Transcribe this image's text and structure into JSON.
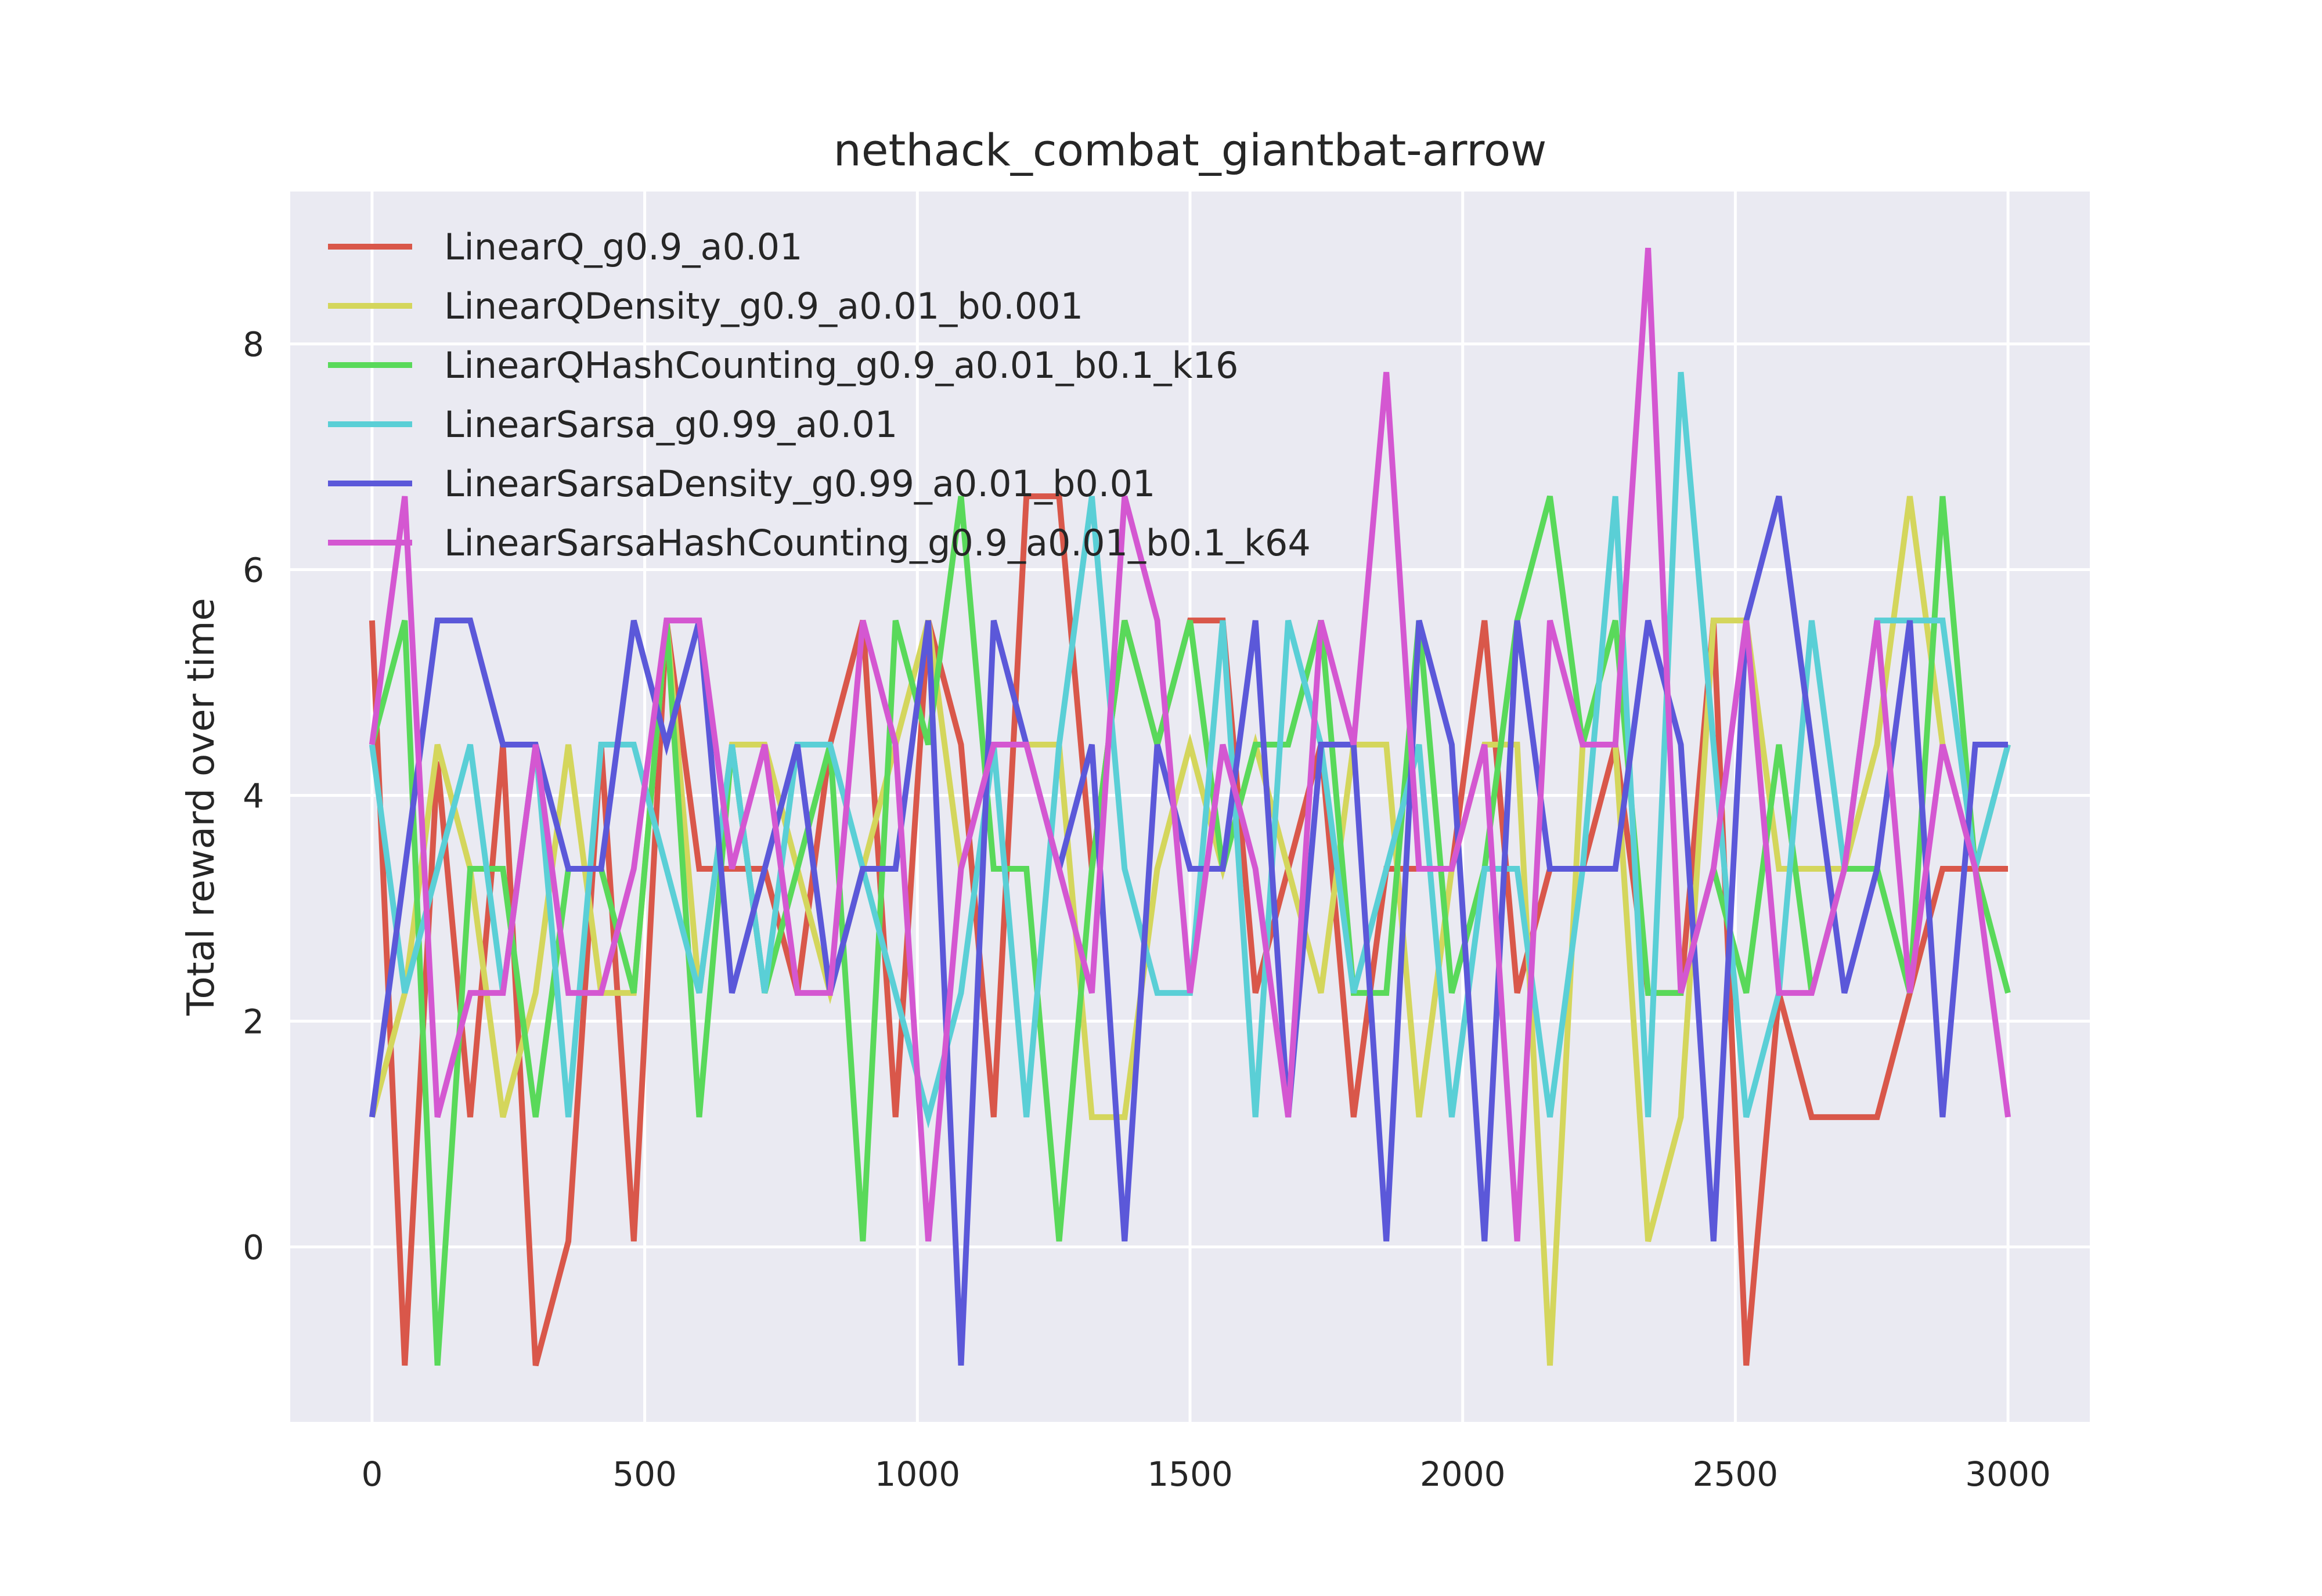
{
  "chart_data": {
    "type": "line",
    "title": "nethack_combat_giantbat-arrow",
    "xlabel": "",
    "ylabel": "Total reward over time",
    "xlim": [
      -150,
      3150
    ],
    "ylim": [
      -1.55,
      9.35
    ],
    "xticks": [
      0,
      500,
      1000,
      1500,
      2000,
      2500,
      3000
    ],
    "yticks": [
      0,
      2,
      4,
      6,
      8
    ],
    "grid": true,
    "legend_position": "top-left",
    "x": [
      0,
      60,
      120,
      180,
      240,
      300,
      360,
      420,
      480,
      540,
      600,
      660,
      720,
      780,
      840,
      900,
      960,
      1020,
      1080,
      1140,
      1200,
      1260,
      1320,
      1380,
      1440,
      1500,
      1560,
      1620,
      1680,
      1740,
      1800,
      1860,
      1920,
      1980,
      2040,
      2100,
      2160,
      2220,
      2280,
      2340,
      2400,
      2460,
      2520,
      2580,
      2640,
      2700,
      2760,
      2820,
      2880,
      2940,
      3000
    ],
    "series": [
      {
        "name": "LinearQ_g0.9_a0.01",
        "color": "#d9574a",
        "values": [
          5.55,
          -1.05,
          4.3,
          1.15,
          4.45,
          -1.05,
          0.05,
          4.45,
          0.05,
          5.55,
          3.35,
          3.35,
          3.35,
          2.25,
          4.45,
          5.55,
          1.15,
          5.55,
          4.45,
          1.15,
          6.65,
          6.65,
          3.35,
          5.55,
          4.45,
          5.55,
          5.55,
          2.25,
          3.35,
          4.45,
          1.15,
          3.35,
          3.35,
          3.35,
          5.55,
          2.25,
          3.35,
          3.35,
          4.45,
          2.25,
          2.25,
          5.55,
          -1.05,
          2.25,
          1.15,
          1.15,
          1.15,
          2.25,
          3.35,
          3.35,
          3.35
        ]
      },
      {
        "name": "LinearQDensity_g0.9_a0.01_b0.001",
        "color": "#d4d65c",
        "values": [
          1.15,
          2.25,
          4.45,
          3.35,
          1.15,
          2.25,
          4.45,
          2.25,
          2.25,
          5.55,
          2.25,
          4.45,
          4.45,
          3.35,
          2.25,
          3.35,
          4.45,
          5.55,
          3.35,
          4.45,
          4.45,
          4.45,
          1.15,
          1.15,
          3.35,
          4.45,
          3.35,
          4.45,
          3.35,
          2.25,
          4.45,
          4.45,
          1.15,
          3.35,
          4.45,
          4.45,
          -1.05,
          4.45,
          4.45,
          0.05,
          1.15,
          5.55,
          5.55,
          3.35,
          3.35,
          3.35,
          4.45,
          6.65,
          4.45,
          3.35,
          4.45
        ]
      },
      {
        "name": "LinearQHashCounting_g0.9_a0.01_b0.1_k16",
        "color": "#59d95a",
        "values": [
          4.45,
          5.55,
          -1.05,
          3.35,
          3.35,
          1.15,
          3.35,
          3.35,
          2.25,
          5.55,
          1.15,
          4.45,
          2.25,
          3.35,
          4.45,
          0.05,
          5.55,
          4.45,
          6.65,
          3.35,
          3.35,
          0.05,
          3.35,
          5.55,
          4.45,
          5.55,
          3.35,
          4.45,
          4.45,
          5.55,
          2.25,
          2.25,
          5.55,
          2.25,
          3.35,
          5.55,
          6.65,
          4.45,
          5.55,
          2.25,
          2.25,
          3.35,
          2.25,
          4.45,
          2.25,
          3.35,
          3.35,
          2.25,
          6.65,
          3.35,
          2.25
        ]
      },
      {
        "name": "LinearSarsa_g0.99_a0.01",
        "color": "#5acfd6",
        "values": [
          4.45,
          2.25,
          3.35,
          4.45,
          2.25,
          4.45,
          1.15,
          4.45,
          4.45,
          3.35,
          2.25,
          4.45,
          2.25,
          4.45,
          4.45,
          3.35,
          2.25,
          1.15,
          2.25,
          4.45,
          1.15,
          4.45,
          6.65,
          3.35,
          2.25,
          2.25,
          5.55,
          1.15,
          5.55,
          4.45,
          2.25,
          3.35,
          4.45,
          1.15,
          3.35,
          3.35,
          1.15,
          3.35,
          6.65,
          1.15,
          7.75,
          4.45,
          1.15,
          2.25,
          5.55,
          3.35,
          5.55,
          5.55,
          5.55,
          3.35,
          4.45
        ]
      },
      {
        "name": "LinearSarsaDensity_g0.99_a0.01_b0.01",
        "color": "#5b58d9",
        "values": [
          1.15,
          3.35,
          5.55,
          5.55,
          4.45,
          4.45,
          3.35,
          3.35,
          5.55,
          4.45,
          5.55,
          2.25,
          3.35,
          4.45,
          2.25,
          3.35,
          3.35,
          5.55,
          -1.05,
          5.55,
          4.45,
          3.35,
          4.45,
          0.05,
          4.45,
          3.35,
          3.35,
          5.55,
          1.15,
          4.45,
          4.45,
          0.05,
          5.55,
          4.45,
          0.05,
          5.55,
          3.35,
          3.35,
          3.35,
          5.55,
          4.45,
          0.05,
          5.55,
          6.65,
          4.45,
          2.25,
          3.35,
          5.55,
          1.15,
          4.45,
          4.45
        ]
      },
      {
        "name": "LinearSarsaHashCounting_g0.9_a0.01_b0.1_k64",
        "color": "#d457d1",
        "values": [
          4.45,
          6.65,
          1.15,
          2.25,
          2.25,
          4.45,
          2.25,
          2.25,
          3.35,
          5.55,
          5.55,
          3.35,
          4.45,
          2.25,
          2.25,
          5.55,
          4.45,
          0.05,
          3.35,
          4.45,
          4.45,
          3.35,
          2.25,
          6.65,
          5.55,
          2.25,
          4.45,
          3.35,
          1.15,
          5.55,
          4.45,
          7.75,
          3.35,
          3.35,
          4.45,
          0.05,
          5.55,
          4.45,
          4.45,
          8.85,
          2.25,
          3.35,
          5.55,
          2.25,
          2.25,
          3.35,
          5.55,
          2.25,
          4.45,
          3.35,
          1.15
        ]
      }
    ]
  }
}
